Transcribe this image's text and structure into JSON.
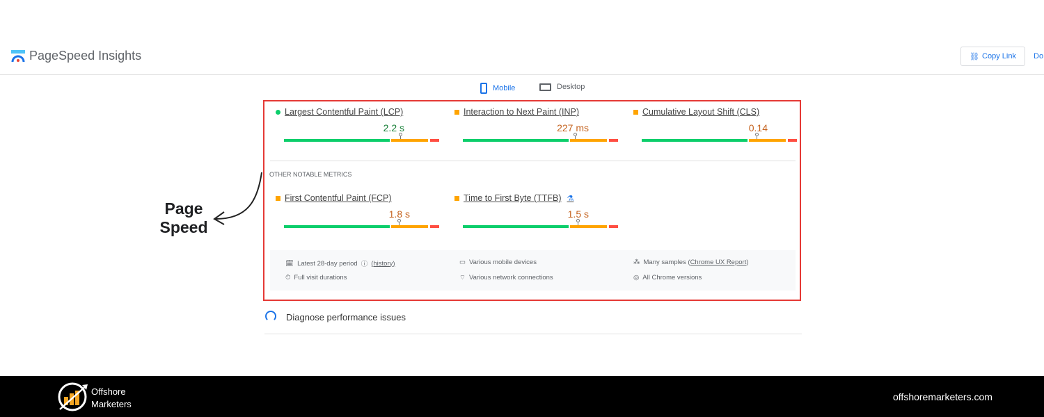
{
  "header": {
    "app_title": "PageSpeed Insights",
    "copy_link": "Copy Link",
    "docs": "Do"
  },
  "tabs": [
    {
      "label": "Mobile",
      "active": true
    },
    {
      "label": "Desktop",
      "active": false
    }
  ],
  "core_metrics": [
    {
      "label": "Largest Contentful Paint (LCP)",
      "value": "2.2 s",
      "status": "good",
      "marker": 0.75
    },
    {
      "label": "Interaction to Next Paint (INP)",
      "value": "227 ms",
      "status": "needs-improvement",
      "marker": 0.72
    },
    {
      "label": "Cumulative Layout Shift (CLS)",
      "value": "0.14",
      "status": "needs-improvement",
      "marker": 0.74
    }
  ],
  "other_heading": "OTHER NOTABLE METRICS",
  "other_metrics": [
    {
      "label": "First Contentful Paint (FCP)",
      "value": "1.8 s",
      "status": "needs-improvement",
      "marker": 0.74
    },
    {
      "label": "Time to First Byte (TTFB)",
      "value": "1.5 s",
      "status": "needs-improvement",
      "marker": 0.74,
      "experimental_icon": "flask-icon"
    }
  ],
  "info": {
    "period": "Latest 28-day period",
    "history": "(history)",
    "devices": "Various mobile devices",
    "samples_prefix": "Many samples (",
    "samples_link": "Chrome UX Report",
    "samples_suffix": ")",
    "durations": "Full visit durations",
    "network": "Various network connections",
    "chrome": "All Chrome versions"
  },
  "diagnose": "Diagnose performance issues",
  "annotation": {
    "line1": "Page",
    "line2": "Speed"
  },
  "footer": {
    "brand_line1": "Offshore",
    "brand_line2": "Marketers",
    "website": "offshoremarketers.com"
  },
  "colors": {
    "good": "#0cce6b",
    "average": "#ffa400",
    "poor": "#ff4e42",
    "good_text": "#188038",
    "avg_text": "#c5631f",
    "highlight": "#e53935"
  }
}
